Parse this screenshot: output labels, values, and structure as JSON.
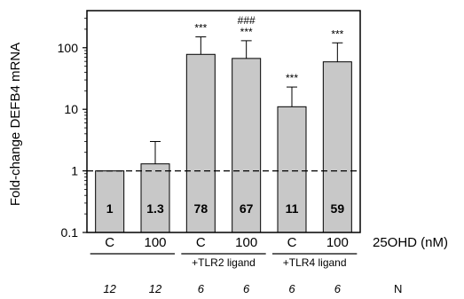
{
  "chart_data": {
    "type": "bar",
    "title": "",
    "ylabel": "Fold-change DEFB4 mRNA",
    "yscale": "log",
    "ylim": [
      0.1,
      400
    ],
    "yticks": [
      {
        "value": 0.1,
        "label": "0.1"
      },
      {
        "value": 1,
        "label": "1"
      },
      {
        "value": 10,
        "label": "10"
      },
      {
        "value": 100,
        "label": "100"
      }
    ],
    "reference_line": {
      "value": 1,
      "style": "dashed"
    },
    "bar_color": "#c8c8c8",
    "categories": [
      "C",
      "100",
      "C",
      "100",
      "C",
      "100"
    ],
    "values": [
      1,
      1.3,
      78,
      67,
      11,
      59
    ],
    "value_labels": [
      "1",
      "1.3",
      "78",
      "67",
      "11",
      "59"
    ],
    "error_upper": [
      1,
      3,
      150,
      130,
      23,
      120
    ],
    "significance": [
      [],
      [],
      [
        "***"
      ],
      [
        "###",
        "***"
      ],
      [
        "***"
      ],
      [
        "***"
      ]
    ],
    "groups": [
      {
        "label": "",
        "span": [
          0,
          1
        ]
      },
      {
        "label": "+TLR2 ligand",
        "span": [
          2,
          3
        ]
      },
      {
        "label": "+TLR4 ligand",
        "span": [
          4,
          5
        ]
      }
    ],
    "x_unit_label": "25OHD (nM)",
    "n_values": [
      "12",
      "12",
      "6",
      "6",
      "6",
      "6"
    ],
    "n_label": "N",
    "grid": false,
    "legend": "none"
  }
}
